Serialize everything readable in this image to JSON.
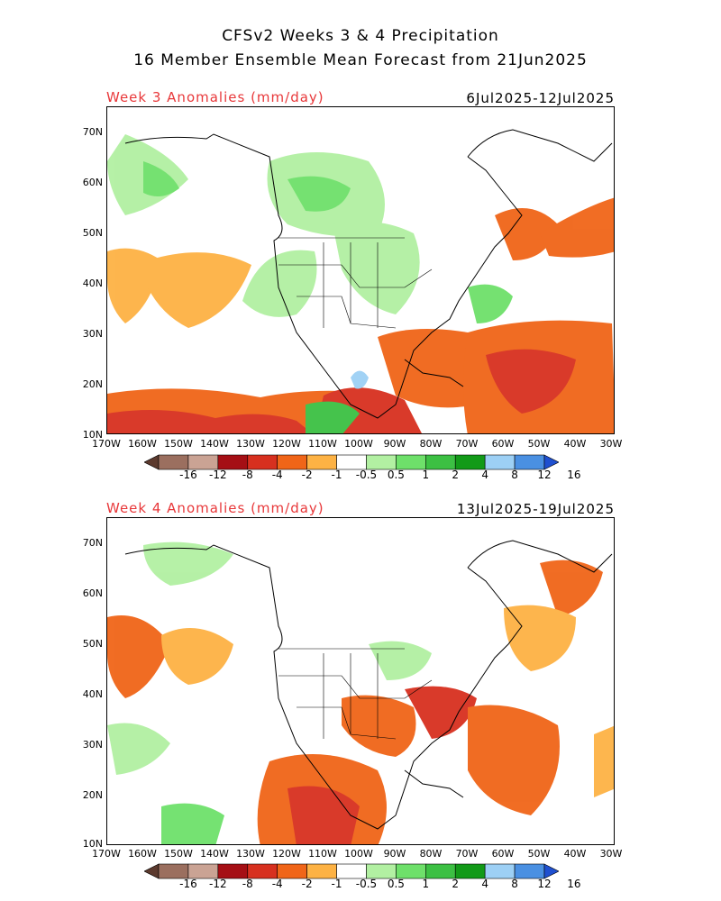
{
  "header": {
    "title_line1": "CFSv2 Weeks 3 & 4 Precipitation",
    "title_line2": "16 Member Ensemble Mean Forecast from 21Jun2025"
  },
  "panels": [
    {
      "title": "Week 3 Anomalies (mm/day)",
      "dates": "6Jul2025-12Jul2025"
    },
    {
      "title": "Week 4 Anomalies (mm/day)",
      "dates": "13Jul2025-19Jul2025"
    }
  ],
  "lat_labels": [
    "70N",
    "60N",
    "50N",
    "40N",
    "30N",
    "20N",
    "10N"
  ],
  "lon_labels": [
    "170W",
    "160W",
    "150W",
    "140W",
    "130W",
    "120W",
    "110W",
    "100W",
    "90W",
    "80W",
    "70W",
    "60W",
    "50W",
    "40W",
    "30W"
  ],
  "colorbar": {
    "labels": [
      "-16",
      "-12",
      "-8",
      "-4",
      "-2",
      "-1",
      "-0.5",
      "0.5",
      "1",
      "2",
      "4",
      "8",
      "12",
      "16"
    ],
    "colors": [
      "#5c3a2e",
      "#9b6f5f",
      "#caa394",
      "#a50f15",
      "#d7301f",
      "#f06518",
      "#fdb244",
      "#ffffff",
      "#b2f0a2",
      "#6ee06a",
      "#3cc043",
      "#129a18",
      "#9dd0f5",
      "#4a90e2",
      "#1f50d0"
    ]
  }
}
